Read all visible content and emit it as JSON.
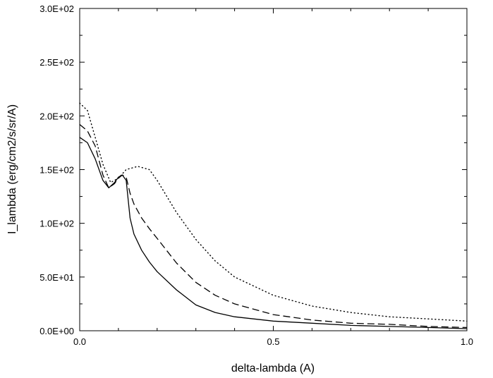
{
  "chart_data": {
    "type": "line",
    "title": "",
    "xlabel": "delta-lambda (A)",
    "ylabel": "I_lambda (erg/cm2/s/sr/A)",
    "xlim": [
      0.0,
      1.0
    ],
    "ylim": [
      0.0,
      300.0
    ],
    "x_ticks": [
      0.0,
      0.5,
      1.0
    ],
    "x_tick_labels": [
      "0.0",
      "0.5",
      "1.0"
    ],
    "y_ticks": [
      0,
      50,
      100,
      150,
      200,
      250,
      300
    ],
    "y_tick_labels": [
      "0.0E+00",
      "5.0E+01",
      "1.0E+02",
      "1.5E+02",
      "2.0E+02",
      "2.5E+02",
      "3.0E+02"
    ],
    "grid": false,
    "legend": "none",
    "series": [
      {
        "style": "solid",
        "color": "#000000",
        "x": [
          0.0,
          0.02,
          0.04,
          0.06,
          0.075,
          0.09,
          0.1,
          0.11,
          0.12,
          0.13,
          0.14,
          0.16,
          0.18,
          0.2,
          0.25,
          0.3,
          0.35,
          0.4,
          0.5,
          0.6,
          0.7,
          0.8,
          0.9,
          1.0
        ],
        "y": [
          180,
          175,
          160,
          140,
          133,
          138,
          143,
          145,
          140,
          105,
          90,
          75,
          64,
          55,
          38,
          24,
          17,
          13,
          9,
          7,
          5,
          4,
          3,
          2
        ]
      },
      {
        "style": "dashed",
        "color": "#000000",
        "x": [
          0.0,
          0.02,
          0.04,
          0.06,
          0.075,
          0.09,
          0.1,
          0.11,
          0.12,
          0.13,
          0.14,
          0.16,
          0.18,
          0.2,
          0.25,
          0.3,
          0.35,
          0.4,
          0.5,
          0.6,
          0.7,
          0.8,
          0.9,
          1.0
        ],
        "y": [
          192,
          186,
          172,
          145,
          133,
          137,
          142,
          145,
          143,
          128,
          118,
          105,
          95,
          86,
          63,
          45,
          33,
          25,
          15,
          10,
          7,
          6,
          4,
          3
        ]
      },
      {
        "style": "dotted",
        "color": "#000000",
        "x": [
          0.0,
          0.02,
          0.04,
          0.06,
          0.08,
          0.1,
          0.12,
          0.15,
          0.18,
          0.2,
          0.25,
          0.3,
          0.35,
          0.4,
          0.5,
          0.6,
          0.7,
          0.8,
          0.9,
          1.0
        ],
        "y": [
          212,
          205,
          180,
          155,
          138,
          142,
          150,
          153,
          150,
          140,
          110,
          85,
          65,
          50,
          33,
          23,
          17,
          13,
          11,
          9
        ]
      }
    ]
  }
}
